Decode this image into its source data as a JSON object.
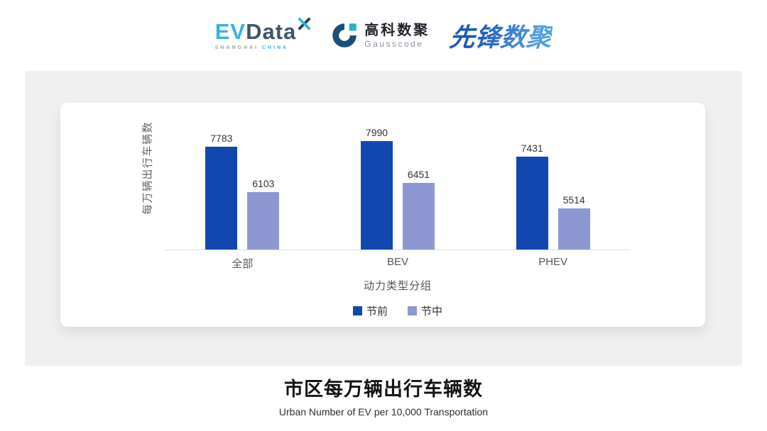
{
  "header": {
    "evdata": {
      "wordmark_ev": "EV",
      "wordmark_data": "Data",
      "tagline_left": "SHANGHAI",
      "tagline_right": "CHINA",
      "ev_color": "#35b1e4",
      "data_color": "#42536a"
    },
    "gausscode": {
      "name_cn": "高科数聚",
      "name_en": "Gausscode",
      "icon_navy": "#1c4e7d",
      "icon_teal": "#2ab1c8"
    },
    "xianfeng": {
      "wordmark": "先锋数聚",
      "color": "#2b6fd3"
    }
  },
  "chart_data": {
    "type": "bar",
    "categories": [
      "全部",
      "BEV",
      "PHEV"
    ],
    "series": [
      {
        "name": "节前",
        "color": "#1247af",
        "values": [
          7783,
          7990,
          7431
        ]
      },
      {
        "name": "节中",
        "color": "#8d98d3",
        "values": [
          6103,
          6451,
          5514
        ]
      }
    ],
    "ylabel": "每万辆出行车辆数",
    "xlabel": "动力类型分组",
    "ylim": [
      3980,
      8450
    ],
    "grid": false,
    "legend_position": "bottom",
    "value_labels_shown": true
  },
  "footer": {
    "title": "市区每万辆出行车辆数",
    "subtitle": "Urban Number of EV per 10,000 Transportation"
  }
}
